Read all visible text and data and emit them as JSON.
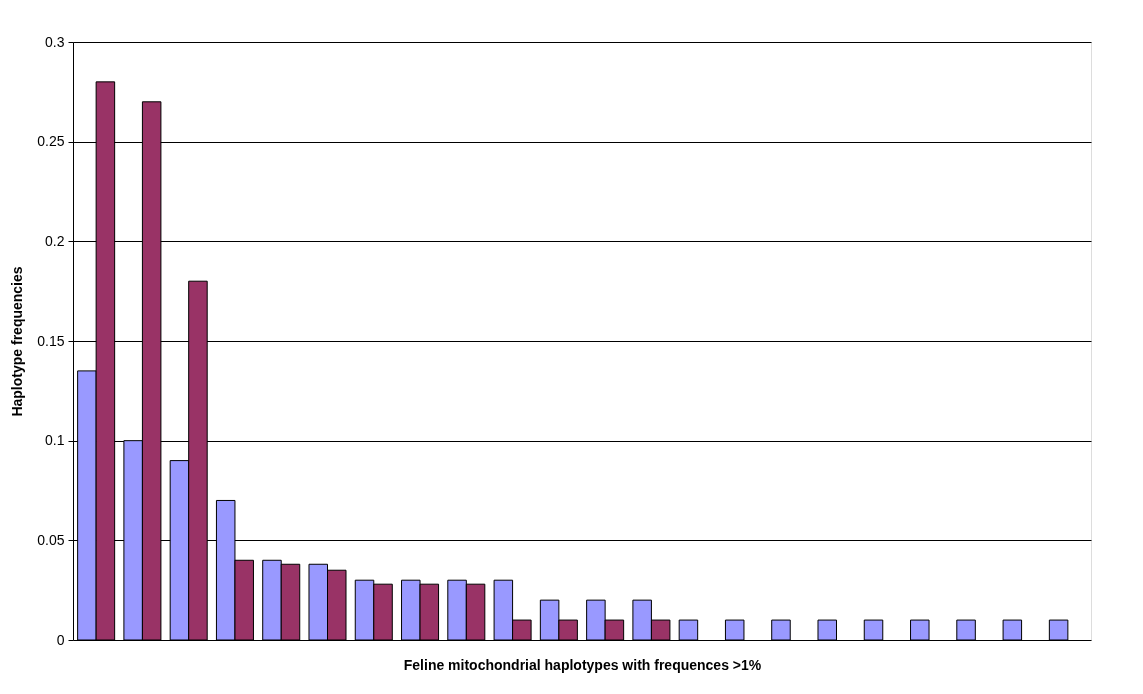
{
  "chart_data": {
    "type": "bar",
    "xlabel": "Feline mitochondrial haplotypes with frequences >1%",
    "ylabel": "Haplotype frequencies",
    "categories": [
      null,
      null,
      null,
      null,
      null,
      null,
      null,
      null,
      null,
      null,
      null,
      null,
      null,
      null,
      null,
      null,
      null,
      null,
      null,
      null,
      null,
      null
    ],
    "series": [
      {
        "color": "#9999ff",
        "values": [
          0.135,
          0.1,
          0.09,
          0.07,
          0.04,
          0.038,
          0.03,
          0.03,
          0.03,
          0.03,
          0.02,
          0.02,
          0.02,
          0.01,
          0.01,
          0.01,
          0.01,
          0.01,
          0.01,
          0.01,
          0.01,
          0.01
        ]
      },
      {
        "color": "#993366",
        "values": [
          0.28,
          0.27,
          0.18,
          0.04,
          0.038,
          0.035,
          0.028,
          0.028,
          0.028,
          0.01,
          0.01,
          0.01,
          0.01,
          null,
          null,
          null,
          null,
          null,
          null,
          null,
          null,
          null
        ]
      }
    ],
    "ylim": [
      0,
      0.3
    ],
    "yticks": [
      0,
      0.05,
      0.1,
      0.15,
      0.2,
      0.25,
      0.3
    ],
    "grid": "y",
    "legend": false,
    "tick_labels": "y"
  }
}
